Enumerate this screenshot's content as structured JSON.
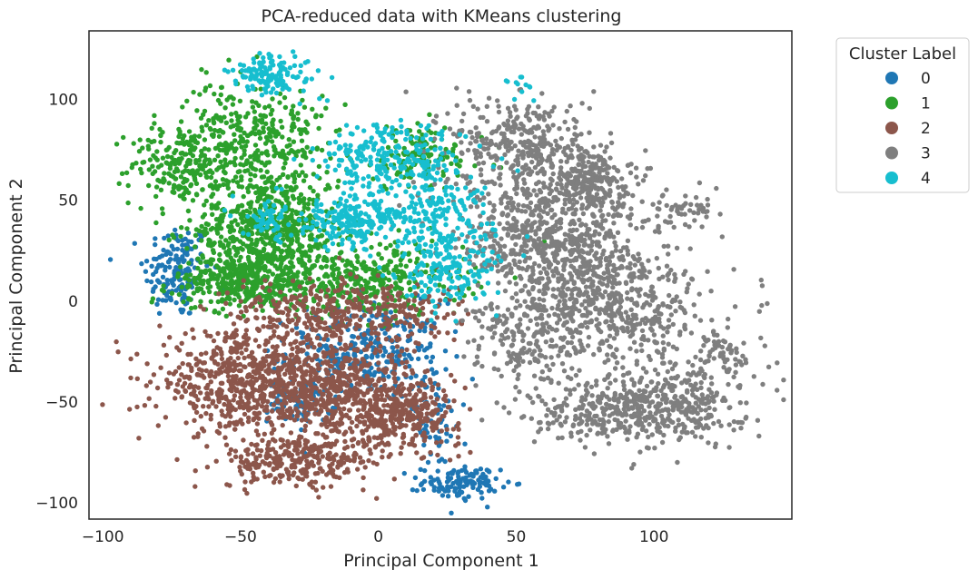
{
  "chart_data": {
    "type": "scatter",
    "title": "PCA-reduced data with KMeans clustering",
    "xlabel": "Principal Component 1",
    "ylabel": "Principal Component 2",
    "xlim": [
      -105,
      150
    ],
    "ylim": [
      -108,
      134
    ],
    "xticks": [
      -100,
      -50,
      0,
      50,
      100
    ],
    "yticks": [
      -100,
      -50,
      0,
      50,
      100
    ],
    "grid": false,
    "legend": {
      "title": "Cluster Label",
      "placement": "outside-top-right",
      "entries": [
        "0",
        "1",
        "2",
        "3",
        "4"
      ]
    },
    "series": [
      {
        "name": "0",
        "color": "#1f77b4",
        "blobs": [
          {
            "x": -73,
            "y": 15,
            "sx": 6,
            "sy": 12,
            "n": 160
          },
          {
            "x": -5,
            "y": -25,
            "sx": 14,
            "sy": 12,
            "n": 330
          },
          {
            "x": -28,
            "y": -50,
            "sx": 6,
            "sy": 5,
            "n": 80
          },
          {
            "x": 30,
            "y": -90,
            "sx": 7,
            "sy": 4,
            "n": 120
          },
          {
            "x": 20,
            "y": -60,
            "sx": 6,
            "sy": 12,
            "n": 60
          }
        ]
      },
      {
        "name": "1",
        "color": "#2ca02c",
        "blobs": [
          {
            "x": -72,
            "y": 68,
            "sx": 9,
            "sy": 10,
            "n": 200
          },
          {
            "x": -40,
            "y": 35,
            "sx": 13,
            "sy": 16,
            "n": 700
          },
          {
            "x": -55,
            "y": 85,
            "sx": 8,
            "sy": 12,
            "n": 150
          },
          {
            "x": -35,
            "y": 80,
            "sx": 8,
            "sy": 15,
            "n": 150
          },
          {
            "x": -50,
            "y": 10,
            "sx": 12,
            "sy": 6,
            "n": 300
          },
          {
            "x": -5,
            "y": 10,
            "sx": 18,
            "sy": 9,
            "n": 350
          },
          {
            "x": 15,
            "y": 72,
            "sx": 12,
            "sy": 8,
            "n": 120
          }
        ]
      },
      {
        "name": "2",
        "color": "#8c564b",
        "blobs": [
          {
            "x": -50,
            "y": -40,
            "sx": 15,
            "sy": 12,
            "n": 550
          },
          {
            "x": -15,
            "y": -45,
            "sx": 14,
            "sy": 15,
            "n": 650
          },
          {
            "x": -30,
            "y": -80,
            "sx": 14,
            "sy": 6,
            "n": 250
          },
          {
            "x": 10,
            "y": -55,
            "sx": 10,
            "sy": 8,
            "n": 280
          },
          {
            "x": -25,
            "y": -5,
            "sx": 15,
            "sy": 8,
            "n": 200
          },
          {
            "x": 5,
            "y": -5,
            "sx": 12,
            "sy": 8,
            "n": 150
          }
        ]
      },
      {
        "name": "3",
        "color": "#7f7f7f",
        "blobs": [
          {
            "x": 52,
            "y": 80,
            "sx": 13,
            "sy": 11,
            "n": 300
          },
          {
            "x": 75,
            "y": 60,
            "sx": 8,
            "sy": 8,
            "n": 250
          },
          {
            "x": 55,
            "y": 40,
            "sx": 17,
            "sy": 16,
            "n": 350
          },
          {
            "x": 65,
            "y": 25,
            "sx": 14,
            "sy": 10,
            "n": 250
          },
          {
            "x": 85,
            "y": 0,
            "sx": 17,
            "sy": 15,
            "n": 550
          },
          {
            "x": 55,
            "y": -20,
            "sx": 12,
            "sy": 12,
            "n": 200
          },
          {
            "x": 105,
            "y": -50,
            "sx": 14,
            "sy": 10,
            "n": 350
          },
          {
            "x": 80,
            "y": -55,
            "sx": 15,
            "sy": 8,
            "n": 200
          },
          {
            "x": 110,
            "y": 45,
            "sx": 8,
            "sy": 5,
            "n": 60
          },
          {
            "x": 125,
            "y": -25,
            "sx": 7,
            "sy": 7,
            "n": 60
          }
        ]
      },
      {
        "name": "4",
        "color": "#17becf",
        "blobs": [
          {
            "x": -38,
            "y": 112,
            "sx": 8,
            "sy": 5,
            "n": 130
          },
          {
            "x": 5,
            "y": 70,
            "sx": 13,
            "sy": 9,
            "n": 250
          },
          {
            "x": -10,
            "y": 40,
            "sx": 9,
            "sy": 6,
            "n": 200
          },
          {
            "x": 20,
            "y": 45,
            "sx": 11,
            "sy": 8,
            "n": 150
          },
          {
            "x": 25,
            "y": 15,
            "sx": 9,
            "sy": 10,
            "n": 180
          },
          {
            "x": -40,
            "y": 40,
            "sx": 5,
            "sy": 5,
            "n": 60
          },
          {
            "x": 52,
            "y": 105,
            "sx": 4,
            "sy": 3,
            "n": 12
          }
        ]
      }
    ]
  }
}
